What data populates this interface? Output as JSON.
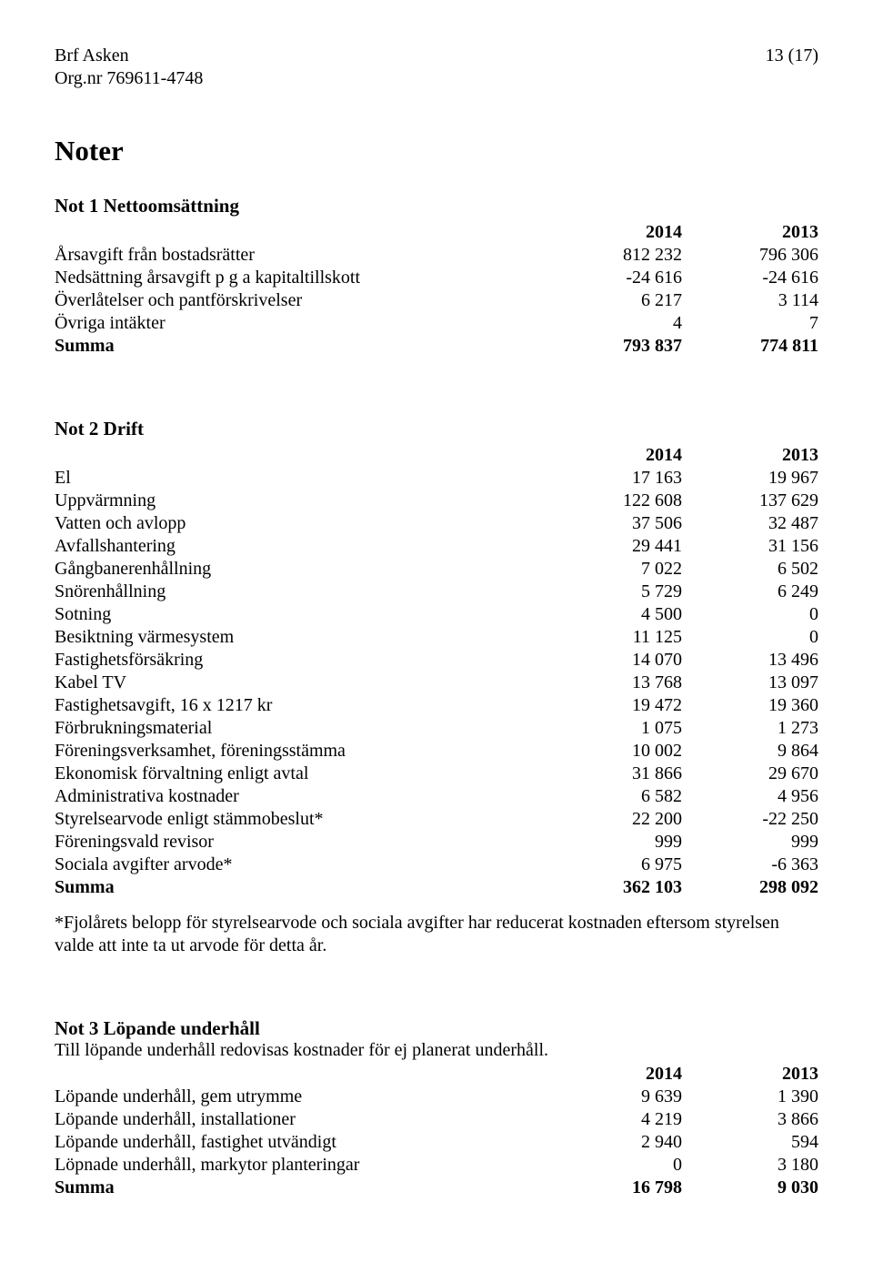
{
  "header": {
    "company": "Brf Asken",
    "page_indicator": "13 (17)",
    "org_nr": "Org.nr 769611-4748"
  },
  "noter_title": "Noter",
  "note1": {
    "heading": "Not 1 Nettoomsättning",
    "col1": "2014",
    "col2": "2013",
    "rows": [
      {
        "label": "Årsavgift från bostadsrätter",
        "c1": "812 232",
        "c2": "796 306"
      },
      {
        "label": "Nedsättning årsavgift p g a kapitaltillskott",
        "c1": "-24 616",
        "c2": "-24 616"
      },
      {
        "label": "Överlåtelser och pantförskrivelser",
        "c1": "6 217",
        "c2": "3 114"
      },
      {
        "label": "Övriga intäkter",
        "c1": "4",
        "c2": "7"
      }
    ],
    "summa": {
      "label": "Summa",
      "c1": "793 837",
      "c2": "774 811"
    }
  },
  "note2": {
    "heading": "Not 2 Drift",
    "col1": "2014",
    "col2": "2013",
    "rows": [
      {
        "label": "El",
        "c1": "17 163",
        "c2": "19 967"
      },
      {
        "label": "Uppvärmning",
        "c1": "122 608",
        "c2": "137 629"
      },
      {
        "label": "Vatten och avlopp",
        "c1": "37 506",
        "c2": "32 487"
      },
      {
        "label": "Avfallshantering",
        "c1": "29 441",
        "c2": "31 156"
      },
      {
        "label": "Gångbanerenhållning",
        "c1": "7 022",
        "c2": "6 502"
      },
      {
        "label": "Snörenhållning",
        "c1": "5 729",
        "c2": "6 249"
      },
      {
        "label": "Sotning",
        "c1": "4 500",
        "c2": "0"
      },
      {
        "label": "Besiktning värmesystem",
        "c1": "11 125",
        "c2": "0"
      },
      {
        "label": "Fastighetsförsäkring",
        "c1": "14 070",
        "c2": "13 496"
      },
      {
        "label": "Kabel TV",
        "c1": "13 768",
        "c2": "13 097"
      },
      {
        "label": "Fastighetsavgift, 16 x 1217 kr",
        "c1": "19 472",
        "c2": "19 360"
      },
      {
        "label": "Förbrukningsmaterial",
        "c1": "1 075",
        "c2": "1 273"
      },
      {
        "label": "Föreningsverksamhet, föreningsstämma",
        "c1": "10 002",
        "c2": "9 864"
      },
      {
        "label": "Ekonomisk förvaltning enligt avtal",
        "c1": "31 866",
        "c2": "29 670"
      },
      {
        "label": "Administrativa kostnader",
        "c1": "6 582",
        "c2": "4 956"
      },
      {
        "label": "Styrelsearvode enligt stämmobeslut*",
        "c1": "22 200",
        "c2": "-22 250"
      },
      {
        "label": "Föreningsvald revisor",
        "c1": "999",
        "c2": "999"
      },
      {
        "label": "Sociala avgifter arvode*",
        "c1": "6 975",
        "c2": "-6 363"
      }
    ],
    "summa": {
      "label": "Summa",
      "c1": "362 103",
      "c2": "298 092"
    },
    "footnote": "*Fjolårets belopp för styrelsearvode och sociala avgifter har reducerat kostnaden eftersom styrelsen valde att inte ta ut arvode för detta år."
  },
  "note3": {
    "heading": "Not 3 Löpande underhåll",
    "subtext": "Till löpande underhåll redovisas kostnader för ej planerat underhåll.",
    "col1": "2014",
    "col2": "2013",
    "rows": [
      {
        "label": "Löpande underhåll, gem utrymme",
        "c1": "9 639",
        "c2": "1 390"
      },
      {
        "label": "Löpande underhåll, installationer",
        "c1": "4 219",
        "c2": "3 866"
      },
      {
        "label": "Löpande underhåll, fastighet utvändigt",
        "c1": "2 940",
        "c2": "594"
      },
      {
        "label": "Löpnade underhåll, markytor planteringar",
        "c1": "0",
        "c2": "3 180"
      }
    ],
    "summa": {
      "label": "Summa",
      "c1": "16 798",
      "c2": "9 030"
    }
  }
}
